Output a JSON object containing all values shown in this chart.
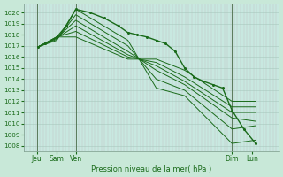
{
  "xlabel": "Pression niveau de la mer( hPa )",
  "background_color": "#c8e8d8",
  "plot_bg_color": "#c8e8e0",
  "grid_v_color": "#b8c8c0",
  "grid_h_color": "#a8c8be",
  "line_color": "#1a6b1a",
  "ylim": [
    1007.5,
    1020.8
  ],
  "yticks": [
    1008,
    1009,
    1010,
    1011,
    1012,
    1013,
    1014,
    1015,
    1016,
    1017,
    1018,
    1019,
    1020
  ],
  "xlim": [
    0.0,
    1.08
  ],
  "day_vlines": [
    0.055,
    0.22,
    0.88
  ],
  "xtick_positions": [
    0.055,
    0.14,
    0.22,
    0.88,
    0.965
  ],
  "xtick_labels": [
    "Jeu",
    "Sam",
    "Ven",
    "Dim",
    "Lun"
  ],
  "series": [
    {
      "x": [
        0.06,
        0.14,
        0.22,
        0.44,
        0.56,
        0.68,
        0.88,
        0.98
      ],
      "y": [
        1016.9,
        1017.5,
        1020.3,
        1017.5,
        1013.2,
        1012.5,
        1008.2,
        1008.5
      ],
      "detailed": false
    },
    {
      "x": [
        0.06,
        0.14,
        0.22,
        0.44,
        0.56,
        0.68,
        0.88,
        0.98
      ],
      "y": [
        1016.9,
        1017.6,
        1019.8,
        1017.0,
        1014.0,
        1013.0,
        1009.5,
        1009.8
      ],
      "detailed": false
    },
    {
      "x": [
        0.06,
        0.14,
        0.22,
        0.44,
        0.56,
        0.68,
        0.88,
        0.98
      ],
      "y": [
        1016.9,
        1017.7,
        1019.3,
        1016.5,
        1014.8,
        1013.5,
        1010.5,
        1010.2
      ],
      "detailed": false
    },
    {
      "x": [
        0.06,
        0.14,
        0.22,
        0.44,
        0.56,
        0.68,
        0.88,
        0.98
      ],
      "y": [
        1016.9,
        1017.7,
        1018.8,
        1016.2,
        1015.2,
        1013.8,
        1011.0,
        1011.0
      ],
      "detailed": false
    },
    {
      "x": [
        0.06,
        0.14,
        0.22,
        0.44,
        0.56,
        0.68,
        0.88,
        0.98
      ],
      "y": [
        1016.9,
        1017.8,
        1018.3,
        1016.0,
        1015.5,
        1014.2,
        1011.5,
        1011.5
      ],
      "detailed": false
    },
    {
      "x": [
        0.06,
        0.14,
        0.22,
        0.44,
        0.56,
        0.68,
        0.88,
        0.98
      ],
      "y": [
        1016.9,
        1017.8,
        1017.8,
        1015.8,
        1015.8,
        1014.8,
        1012.0,
        1012.0
      ],
      "detailed": false
    },
    {
      "x": [
        0.06,
        0.09,
        0.14,
        0.18,
        0.22,
        0.28,
        0.34,
        0.4,
        0.44,
        0.48,
        0.52,
        0.56,
        0.6,
        0.64,
        0.68,
        0.72,
        0.76,
        0.8,
        0.84,
        0.88,
        0.93,
        0.98
      ],
      "y": [
        1016.9,
        1017.2,
        1017.8,
        1018.8,
        1020.3,
        1020.0,
        1019.5,
        1018.8,
        1018.2,
        1018.0,
        1017.8,
        1017.5,
        1017.2,
        1016.5,
        1015.0,
        1014.2,
        1013.8,
        1013.5,
        1013.2,
        1011.2,
        1009.5,
        1008.2
      ],
      "detailed": true
    }
  ]
}
